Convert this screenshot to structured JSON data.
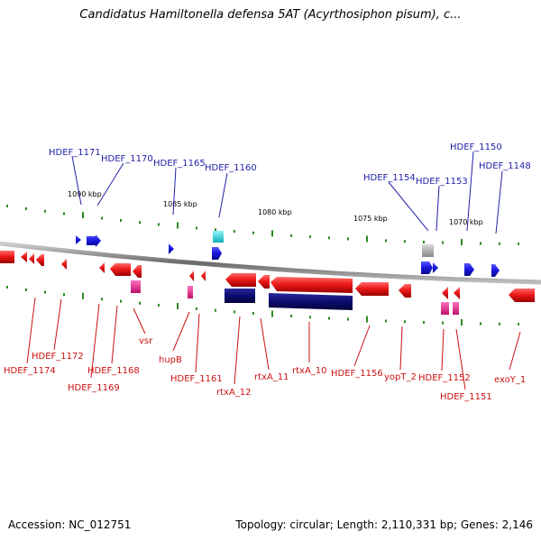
{
  "title": "Candidatus Hamiltonella defensa 5AT (Acyrthosiphon pisum), c...",
  "footer": {
    "accession": "Accession: NC_012751",
    "info": "Topology: circular; Length: 2,110,331 bp; Genes: 2,146"
  },
  "colors": {
    "forward_gene": "#1a1add",
    "reverse_gene": "#e81010",
    "rna_pink": "#e0208a",
    "cyan_feature": "#22d8e0",
    "grey_feature": "#a9a9a9",
    "navy_feature": "#0b0b6e",
    "tick_green": "#2a8a20",
    "axis_grey": "#8a8a8a",
    "label_blue": "#2222aa",
    "label_red": "#cc1111"
  },
  "ruler_labels": [
    "1090 kbp",
    "1085 kbp",
    "1080 kbp",
    "1075 kbp",
    "1070 kbp"
  ],
  "top_labels": [
    "HDEF_1171",
    "HDEF_1170",
    "HDEF_1165",
    "HDEF_1160",
    "HDEF_1154",
    "HDEF_1153",
    "HDEF_1150",
    "HDEF_1148"
  ],
  "bottom_labels": [
    "HDEF_1174",
    "HDEF_1172",
    "HDEF_1169",
    "HDEF_1168",
    "vsr",
    "hupB",
    "HDEF_1161",
    "rtxA_12",
    "rtxA_11",
    "rtxA_10",
    "HDEF_1156",
    "yopT_2",
    "HDEF_1152",
    "HDEF_1151",
    "exoY_1"
  ]
}
